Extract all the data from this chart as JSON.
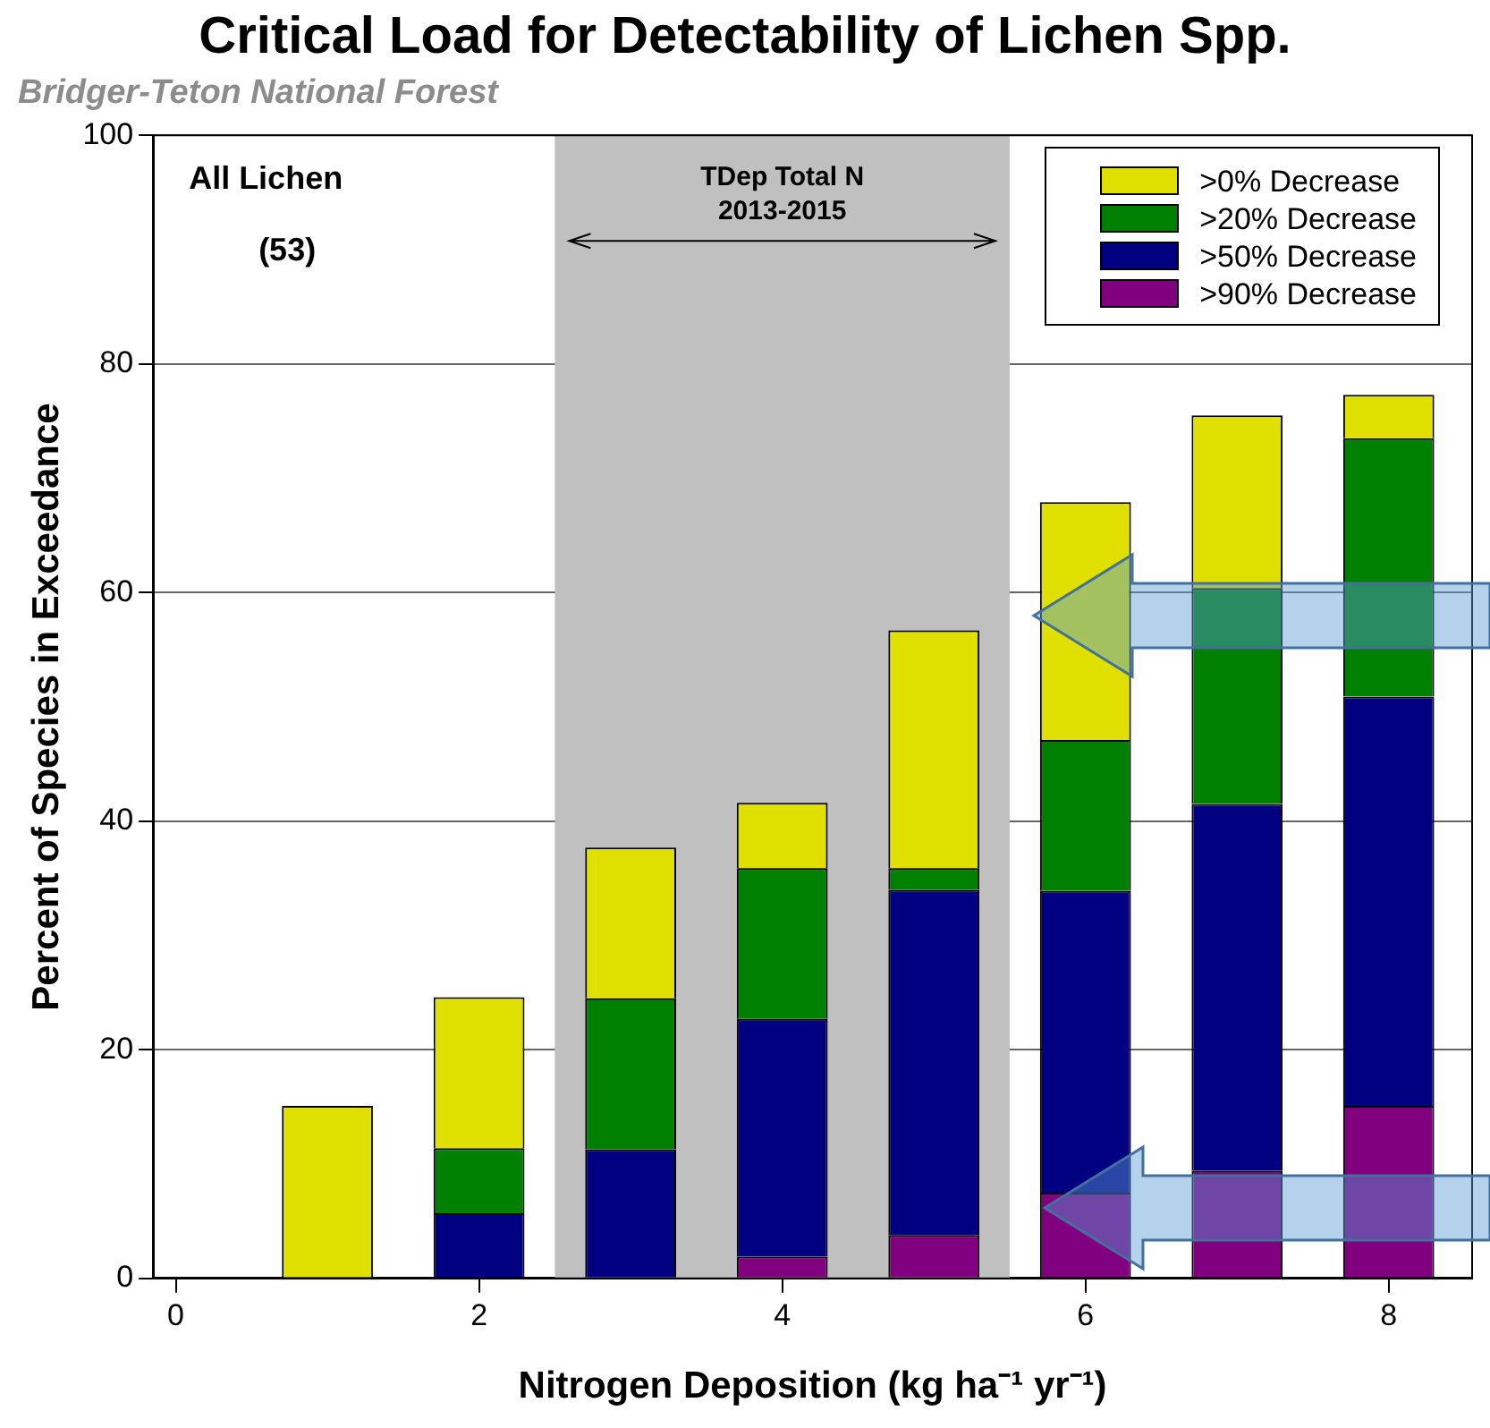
{
  "chart_data": {
    "type": "bar",
    "title": "Critical Load for Detectability of Lichen Spp.",
    "subtitle": "Bridger-Teton National Forest",
    "xlabel": "Nitrogen Deposition (kg ha⁻¹ yr⁻¹)",
    "ylabel": "Percent of Species in Exceedance",
    "x": [
      1,
      2,
      3,
      4,
      5,
      6,
      7,
      8
    ],
    "stacked": true,
    "series": [
      {
        "name": ">90% Decrease",
        "color": "#800080",
        "values": [
          0,
          0,
          0,
          1.9,
          3.8,
          7.5,
          9.4,
          15.1
        ]
      },
      {
        "name": ">50% Decrease",
        "color": "#000080",
        "values": [
          0,
          5.7,
          11.3,
          20.8,
          30.2,
          26.4,
          32.1,
          35.8
        ]
      },
      {
        "name": ">20% Decrease",
        "color": "#008000",
        "values": [
          0,
          5.7,
          13.2,
          13.2,
          1.9,
          13.2,
          18.9,
          22.6
        ]
      },
      {
        "name": ">0% Decrease",
        "color": "#e0e000",
        "values": [
          15.1,
          13.2,
          13.2,
          5.7,
          20.8,
          20.8,
          15.1,
          3.8
        ]
      }
    ],
    "xlim": [
      -0.15,
      8.55
    ],
    "xticks": [
      0,
      2,
      4,
      6,
      8
    ],
    "ylim": [
      0,
      100
    ],
    "yticks": [
      0,
      20,
      40,
      60,
      80,
      100
    ],
    "grid": "y",
    "legend": "top right",
    "bands": [
      {
        "axis": "x",
        "from": 2.5,
        "to": 5.5,
        "label": "TDep Total N\n2013-2015",
        "color": "#c0c0c0"
      }
    ],
    "annotations": [
      "All Lichen",
      "(53)"
    ]
  }
}
